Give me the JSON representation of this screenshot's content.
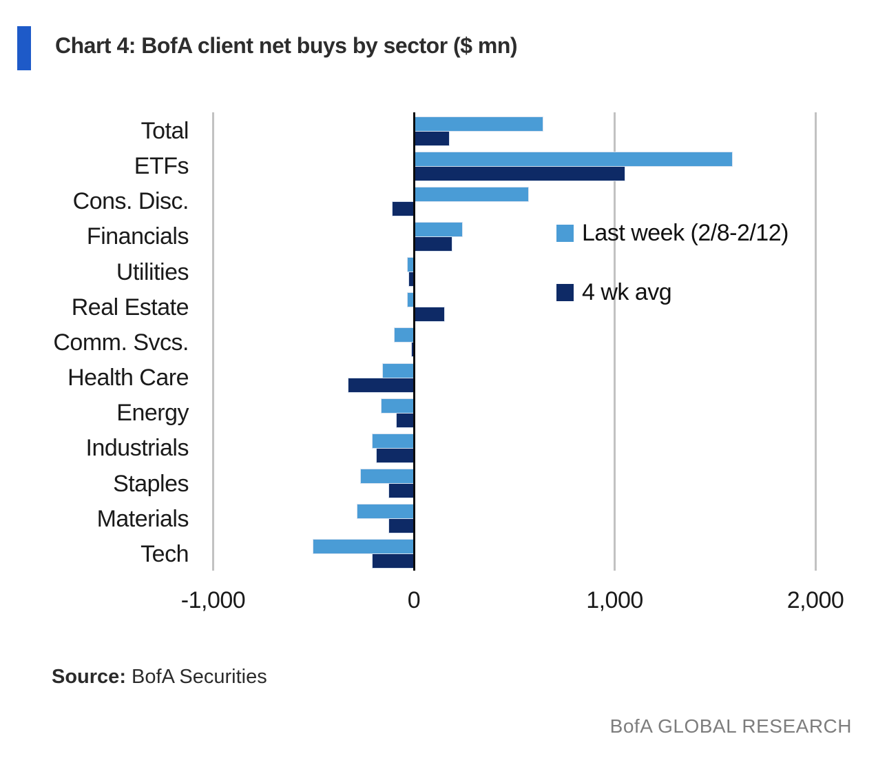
{
  "header": {
    "title": "Chart 4: BofA client net buys by sector ($ mn)",
    "accent_color": "#1e5ac8"
  },
  "chart_data": {
    "type": "bar",
    "orientation": "horizontal",
    "title": "Chart 4: BofA client net buys by sector ($ mn)",
    "categories": [
      "Total",
      "ETFs",
      "Cons. Disc.",
      "Financials",
      "Utilities",
      "Real Estate",
      "Comm. Svcs.",
      "Health Care",
      "Energy",
      "Industrials",
      "Staples",
      "Materials",
      "Tech"
    ],
    "series": [
      {
        "name": "Last week (2/8-2/12)",
        "color": "#4a9cd6",
        "values": [
          640,
          1585,
          570,
          240,
          -30,
          -30,
          -95,
          -155,
          -160,
          -205,
          -265,
          -280,
          -500
        ]
      },
      {
        "name": "4 wk avg",
        "color": "#0e2a66",
        "values": [
          175,
          1050,
          -105,
          190,
          -25,
          150,
          -10,
          -325,
          -85,
          -185,
          -125,
          -125,
          -205
        ]
      }
    ],
    "xlim": [
      -1000,
      2000
    ],
    "x_ticks": [
      -1000,
      0,
      1000,
      2000
    ],
    "x_tick_labels": [
      "-1,000",
      "0",
      "1,000",
      "2,000"
    ],
    "grid": "vertical-gridlines-on",
    "zero_line": "black",
    "legend_position": "inside-right",
    "gridline_color": "#c2c2c2"
  },
  "footer": {
    "source_label": "Source:",
    "source_text": "BofA Securities",
    "brand": "BofA GLOBAL RESEARCH"
  }
}
